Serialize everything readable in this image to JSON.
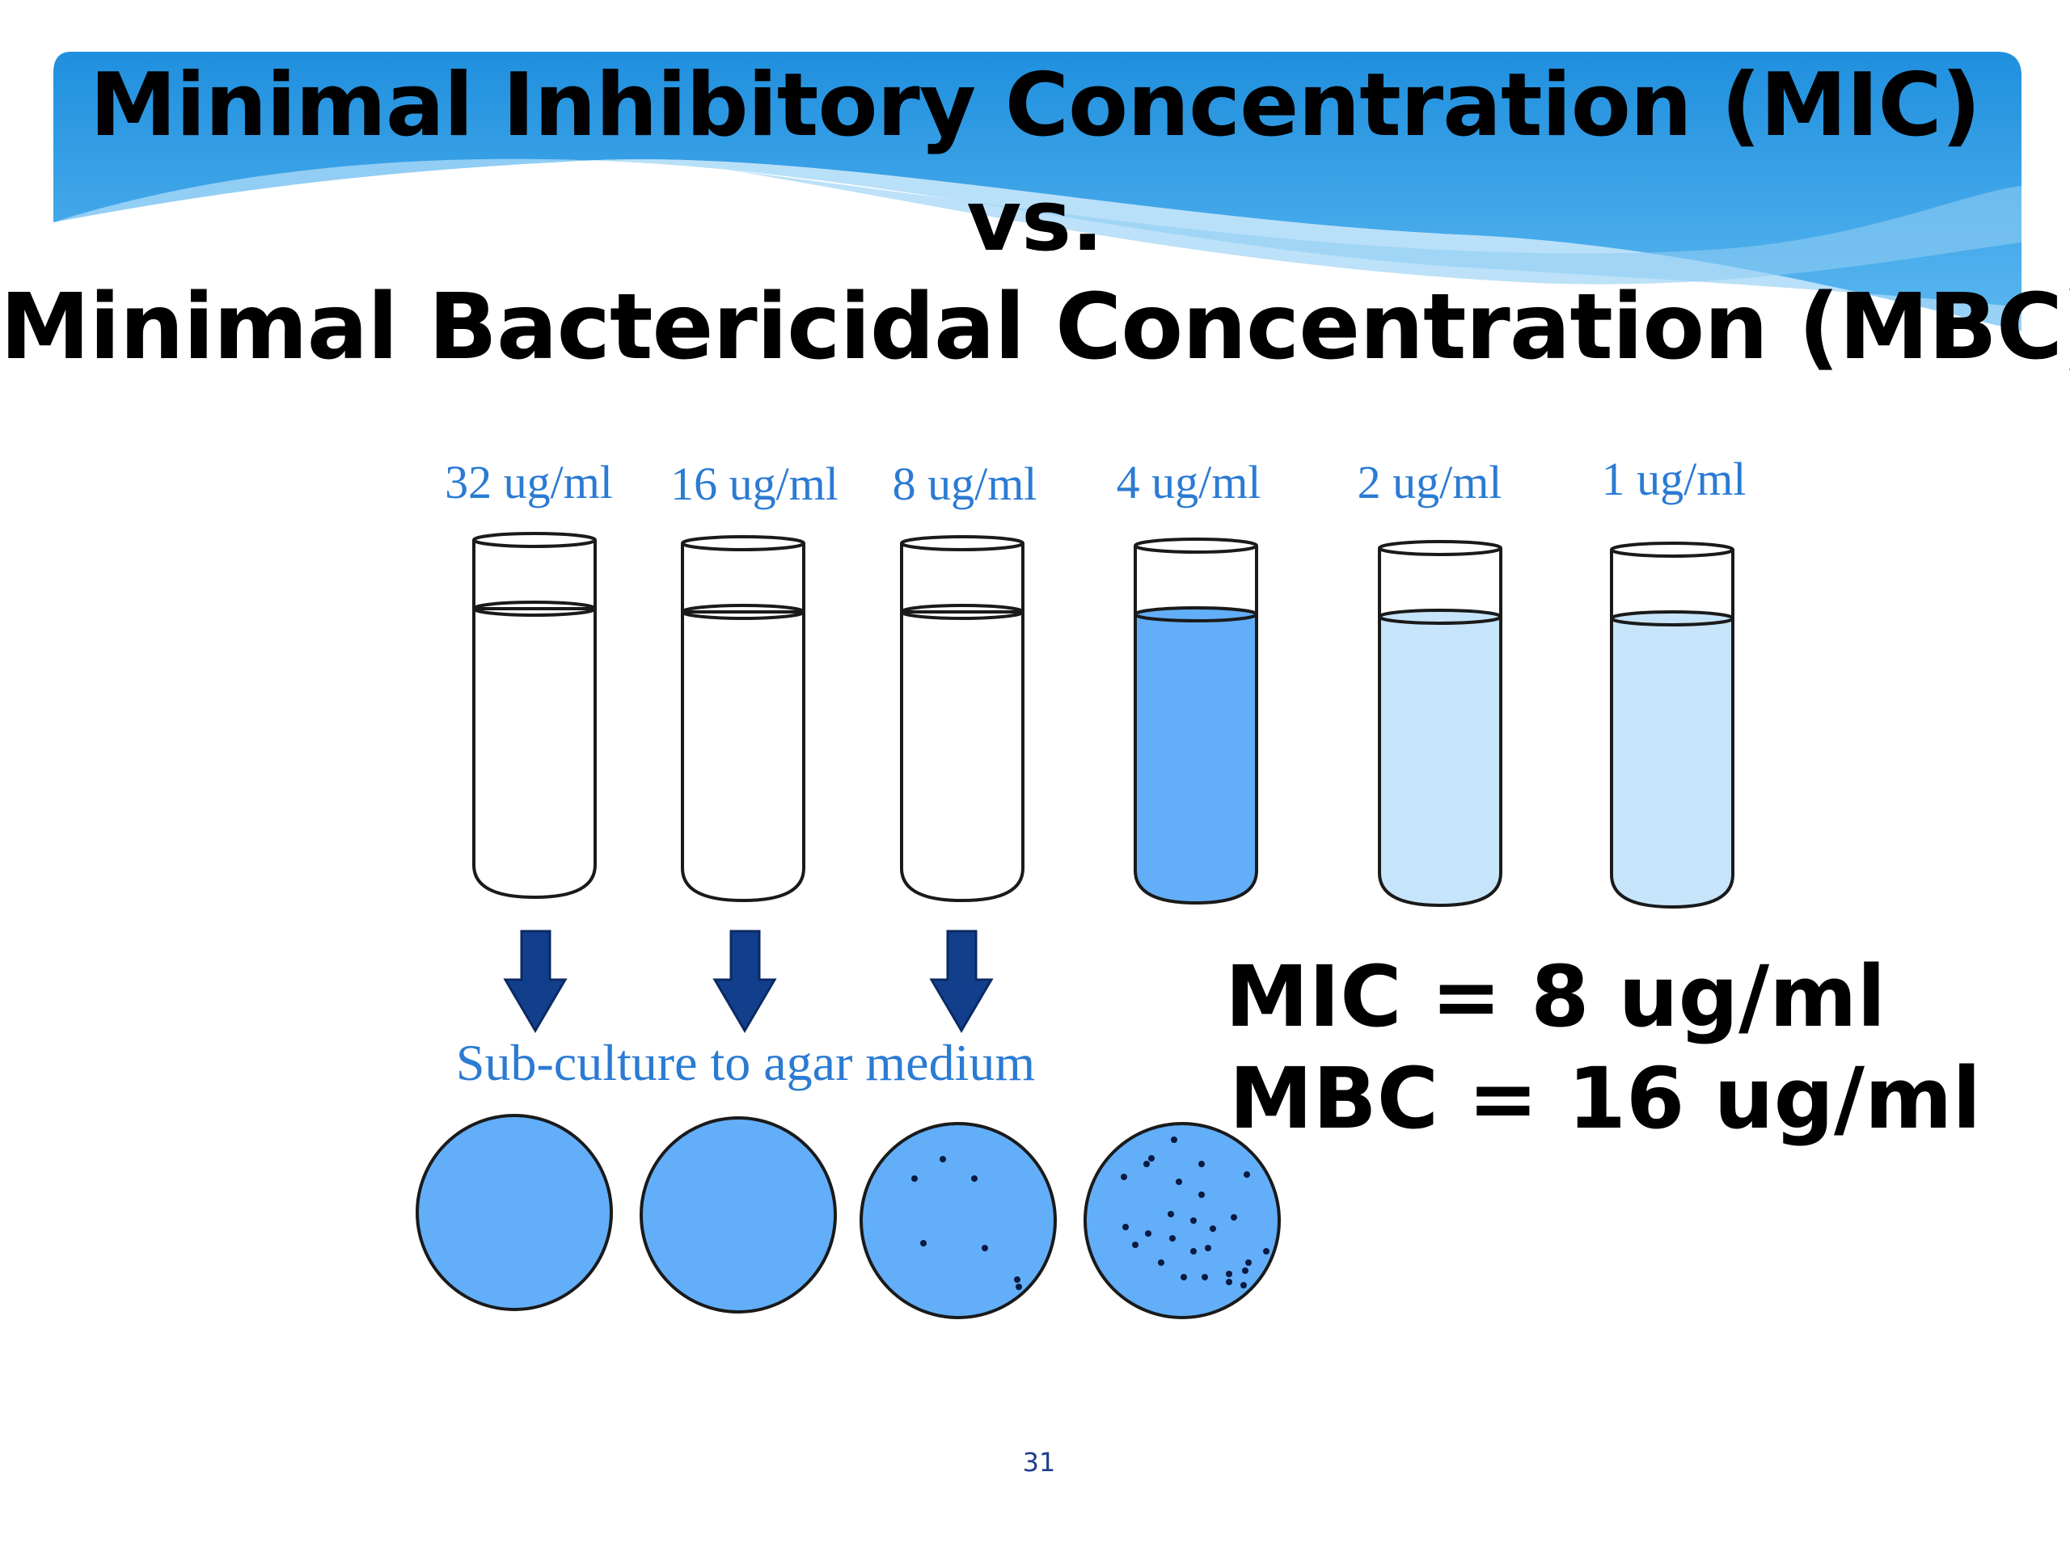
{
  "title": {
    "line1": "Minimal Inhibitory Concentration (MIC)",
    "line2": "vs.",
    "line3": "Minimal Bactericidal Concentration (MBC)"
  },
  "tubes": [
    {
      "label": "32 ug/ml",
      "fill": "clear"
    },
    {
      "label": "16 ug/ml",
      "fill": "clear"
    },
    {
      "label": "8 ug/ml",
      "fill": "clear"
    },
    {
      "label": "4 ug/ml",
      "fill": "turbid-dark"
    },
    {
      "label": "2 ug/ml",
      "fill": "turbid-light"
    },
    {
      "label": "1 ug/ml",
      "fill": "turbid-light"
    }
  ],
  "subculture_label": "Sub-culture to agar medium",
  "plates": [
    {
      "colonies": "none"
    },
    {
      "colonies": "none"
    },
    {
      "colonies": "few"
    },
    {
      "colonies": "many"
    }
  ],
  "results": {
    "mic": "MIC = 8 ug/ml",
    "mbc": "MBC = 16 ug/ml"
  },
  "page_number": "31",
  "colors": {
    "banner": "#2f9be3",
    "label_blue": "#2b7bd3",
    "arrow": "#123f8c",
    "turbid_dark": "#62aef9",
    "turbid_light": "#c7e5fa",
    "plate": "#62aef9"
  }
}
